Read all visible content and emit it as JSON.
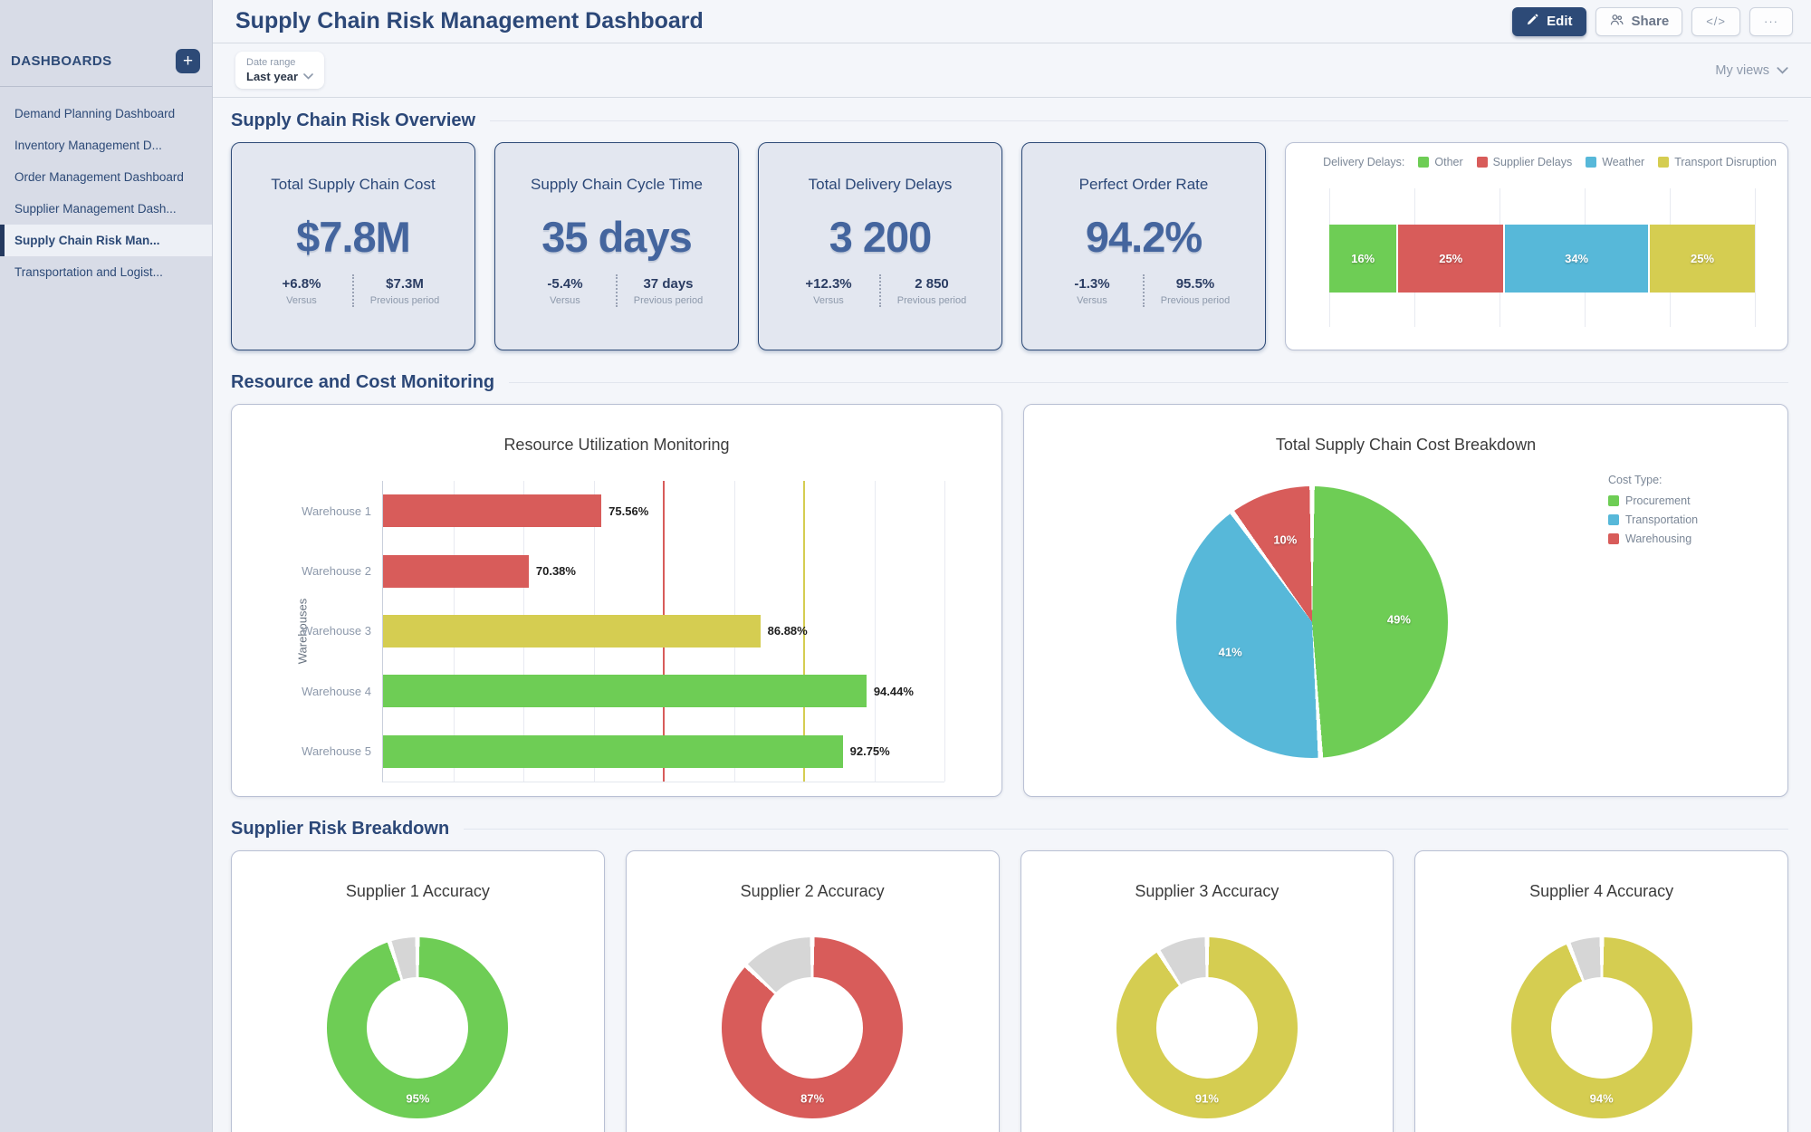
{
  "sidebar": {
    "title": "DASHBOARDS",
    "add_label": "+",
    "items": [
      {
        "label": "Demand Planning Dashboard",
        "active": false
      },
      {
        "label": "Inventory Management D...",
        "active": false
      },
      {
        "label": "Order Management Dashboard",
        "active": false
      },
      {
        "label": "Supplier Management Dash...",
        "active": false
      },
      {
        "label": "Supply Chain Risk Man...",
        "active": true
      },
      {
        "label": "Transportation and Logist...",
        "active": false
      }
    ]
  },
  "header": {
    "title": "Supply Chain Risk Management Dashboard",
    "edit_label": "Edit",
    "share_label": "Share",
    "code_label": "</>",
    "more_label": "···",
    "icons": {
      "edit": "pencil-icon",
      "share": "people-icon",
      "code": "code-icon",
      "more": "ellipsis-icon"
    }
  },
  "toolbar": {
    "date_range_label": "Date range",
    "date_range_value": "Last year",
    "my_views_label": "My views"
  },
  "sections": {
    "overview": "Supply Chain Risk Overview",
    "monitoring": "Resource and Cost Monitoring",
    "supplier": "Supplier Risk Breakdown"
  },
  "kpis": [
    {
      "title": "Total Supply Chain Cost",
      "value": "$7.8M",
      "delta": "+6.8%",
      "delta_label": "Versus",
      "previous": "$7.3M",
      "previous_label": "Previous period"
    },
    {
      "title": "Supply Chain Cycle Time",
      "value": "35 days",
      "delta": "-5.4%",
      "delta_label": "Versus",
      "previous": "37 days",
      "previous_label": "Previous period"
    },
    {
      "title": "Total Delivery Delays",
      "value": "3 200",
      "delta": "+12.3%",
      "delta_label": "Versus",
      "previous": "2 850",
      "previous_label": "Previous period"
    },
    {
      "title": "Perfect Order Rate",
      "value": "94.2%",
      "delta": "-1.3%",
      "delta_label": "Versus",
      "previous": "95.5%",
      "previous_label": "Previous period"
    }
  ],
  "chart_data": [
    {
      "type": "bar",
      "subtype": "stacked-horizontal-percent",
      "title": "Delivery Delays:",
      "legend_position": "top-right",
      "xlim": [
        0,
        100
      ],
      "grid_interval": 20,
      "grid": true,
      "series": [
        {
          "name": "Other",
          "value": 16,
          "label": "16%",
          "color": "#6ecd55"
        },
        {
          "name": "Supplier Delays",
          "value": 25,
          "label": "25%",
          "color": "#d85c5a"
        },
        {
          "name": "Weather",
          "value": 34,
          "label": "34%",
          "color": "#57b8d9"
        },
        {
          "name": "Transport Disruption",
          "value": 25,
          "label": "25%",
          "color": "#d5cd51"
        }
      ]
    },
    {
      "type": "bar",
      "subtype": "horizontal",
      "title": "Resource Utilization Monitoring",
      "xlabel": "",
      "ylabel": "Warehouses",
      "categories": [
        "Warehouse 1",
        "Warehouse 2",
        "Warehouse 3",
        "Warehouse 4",
        "Warehouse 5"
      ],
      "values": [
        75.56,
        70.38,
        86.88,
        94.44,
        92.75
      ],
      "labels": [
        "75.56%",
        "70.38%",
        "86.88%",
        "94.44%",
        "92.75%"
      ],
      "colors": [
        "#d85c5a",
        "#d85c5a",
        "#d5cd51",
        "#6ecd55",
        "#6ecd55"
      ],
      "xlim": [
        60,
        100
      ],
      "grid_interval": 5,
      "grid": true,
      "reference_lines": [
        {
          "value": 80,
          "color": "#d85c5a"
        },
        {
          "value": 90,
          "color": "#d5cd51"
        }
      ]
    },
    {
      "type": "pie",
      "title": "Total Supply Chain Cost Breakdown",
      "legend_title": "Cost Type:",
      "legend_position": "right",
      "slices": [
        {
          "name": "Procurement",
          "value": 49,
          "label": "49%",
          "color": "#6ecd55"
        },
        {
          "name": "Transportation",
          "value": 41,
          "label": "41%",
          "color": "#57b8d9"
        },
        {
          "name": "Warehousing",
          "value": 10,
          "label": "10%",
          "color": "#d85c5a"
        }
      ]
    },
    {
      "type": "donut-group",
      "remainder_color": "#d6d6d6",
      "donuts": [
        {
          "title": "Supplier 1 Accuracy",
          "value": 95,
          "label": "95%",
          "color": "#6ecd55"
        },
        {
          "title": "Supplier 2 Accuracy",
          "value": 87,
          "label": "87%",
          "color": "#d85c5a"
        },
        {
          "title": "Supplier 3 Accuracy",
          "value": 91,
          "label": "91%",
          "color": "#d5cd51"
        },
        {
          "title": "Supplier 4 Accuracy",
          "value": 94,
          "label": "94%",
          "color": "#d5cd51"
        }
      ]
    }
  ],
  "colors": {
    "navy": "#2d4a77",
    "kpi_value_blue": "#44659e",
    "green": "#6ecd55",
    "red": "#d85c5a",
    "blue": "#57b8d9",
    "yellow": "#d5cd51",
    "remainder_gray": "#d6d6d6",
    "sidebar_bg": "#d8dce7",
    "main_bg": "#f4f6fa",
    "kpi_card_bg": "#e3e7f0"
  }
}
